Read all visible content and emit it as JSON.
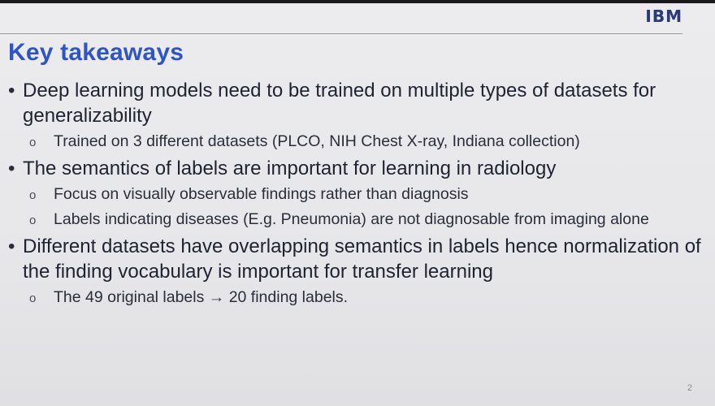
{
  "header": {
    "logo_text": "IBM",
    "title": "Key takeaways"
  },
  "bullets": [
    {
      "text": "Deep learning models need to be trained on multiple types of datasets for generalizability",
      "subitems": [
        "Trained on 3 different datasets (PLCO, NIH Chest X-ray, Indiana collection)"
      ]
    },
    {
      "text": "The semantics of labels are important for learning in radiology",
      "subitems": [
        "Focus on visually observable findings rather than diagnosis",
        "Labels indicating diseases (E.g. Pneumonia) are not diagnosable from imaging alone"
      ]
    },
    {
      "text": "Different datasets have overlapping semantics in labels hence normalization of the finding vocabulary is important for transfer learning",
      "subitems": [
        "The 49 original labels → 20 finding labels."
      ]
    }
  ],
  "page_number": "2",
  "colors": {
    "title": "#2f55c4",
    "logo": "#2b3a78",
    "text": "#1f2230"
  }
}
